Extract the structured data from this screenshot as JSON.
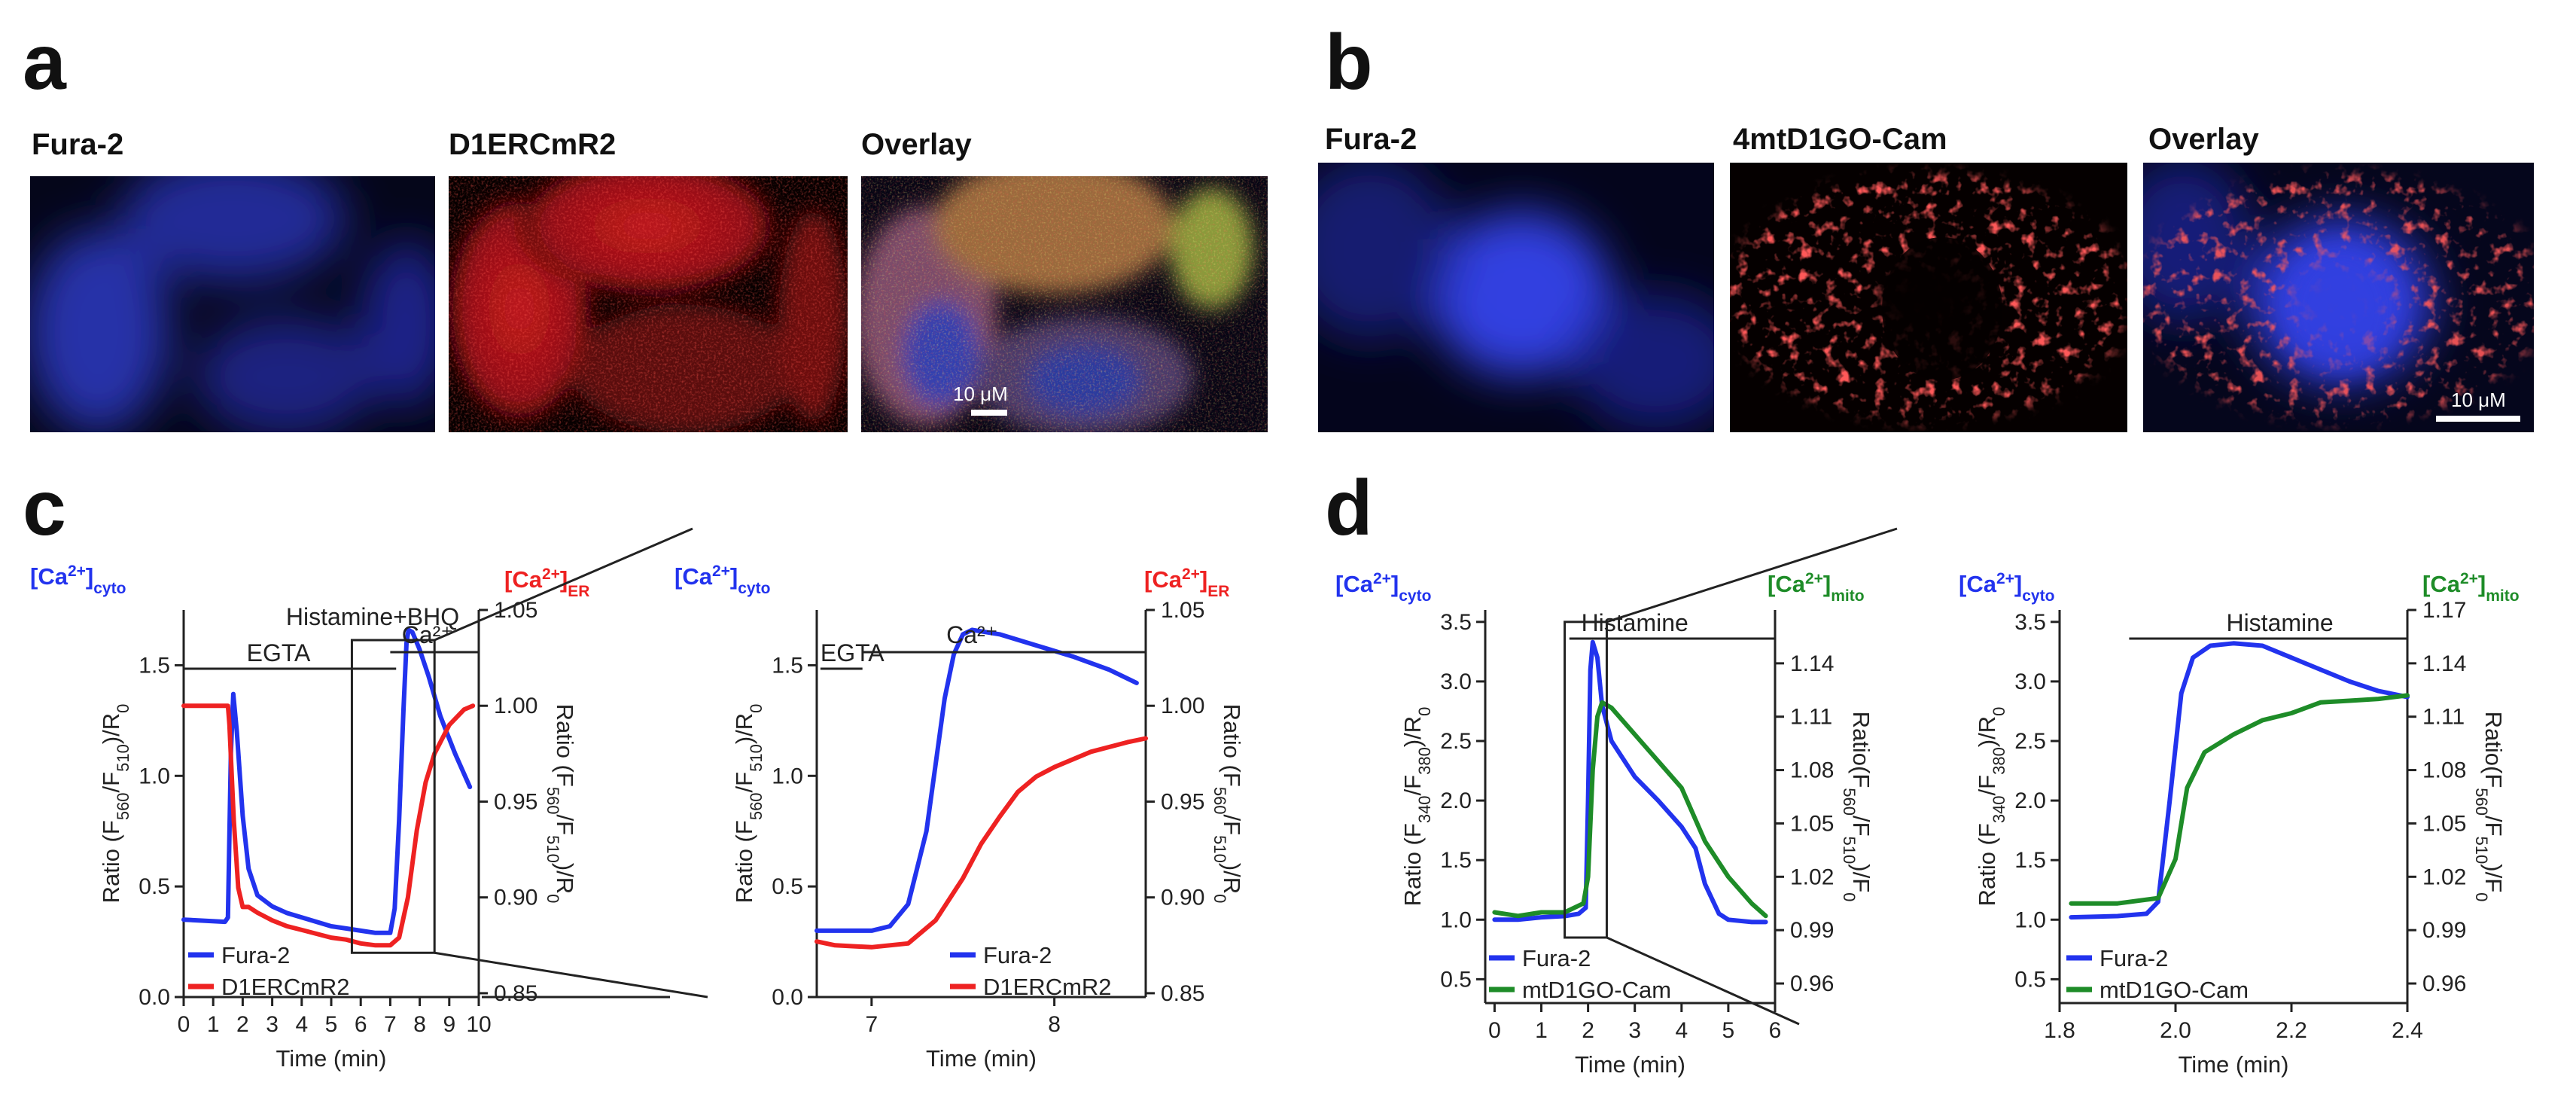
{
  "panels": {
    "a": {
      "letter": "a",
      "images": [
        {
          "title": "Fura-2",
          "description": "blue-fluorescence"
        },
        {
          "title": "D1ERCmR2",
          "description": "red-fluorescence"
        },
        {
          "title": "Overlay",
          "description": "overlay",
          "scale_bar": "10 μM"
        }
      ]
    },
    "b": {
      "letter": "b",
      "images": [
        {
          "title": "Fura-2"
        },
        {
          "title": "4mtD1GO-Cam"
        },
        {
          "title": "Overlay",
          "scale_bar": "10 μM"
        }
      ]
    },
    "c": {
      "letter": "c"
    },
    "d": {
      "letter": "d"
    }
  },
  "colors": {
    "blue": "#2233ee",
    "red": "#ee2222",
    "green": "#1e8c28",
    "axis": "#222222"
  },
  "chart_data": [
    {
      "id": "c-left",
      "type": "line",
      "left_header": {
        "main": "[Ca",
        "sup": "2+",
        "close": "]",
        "sub": "cyto",
        "color": "#2233ee"
      },
      "right_header": {
        "main": "[Ca",
        "sup": "2+",
        "close": "]",
        "sub": "ER",
        "color": "#ee2222"
      },
      "xlabel": "Time (min)",
      "ylabel": "Ratio (F560/F510)/R0",
      "y2label": "Ratio (F560/F510)/R0",
      "xlim": [
        0,
        10
      ],
      "ylim": [
        0,
        1.75
      ],
      "y2lim": [
        0.848,
        1.05
      ],
      "xticks": [
        0,
        1,
        2,
        3,
        4,
        5,
        6,
        7,
        8,
        9,
        10
      ],
      "yticks": [
        "0.0",
        "0.5",
        "1.0",
        "1.5"
      ],
      "y2ticks": [
        "0.85",
        "0.90",
        "0.95",
        "1.00",
        "1.05"
      ],
      "annotations": [
        {
          "text": "Histamine+BHQ"
        },
        {
          "text": "EGTA"
        },
        {
          "text": "Ca²⁺"
        }
      ],
      "inset_box": {
        "x": [
          5.7,
          8.5
        ],
        "y": [
          0.2,
          1.75
        ]
      },
      "series": [
        {
          "name": "Fura-2",
          "axis": "left",
          "color": "#2233ee",
          "points": [
            [
              0,
              0.35
            ],
            [
              1.4,
              0.34
            ],
            [
              1.5,
              0.36
            ],
            [
              1.6,
              1.1
            ],
            [
              1.68,
              1.37
            ],
            [
              1.8,
              1.2
            ],
            [
              2.0,
              0.82
            ],
            [
              2.2,
              0.58
            ],
            [
              2.5,
              0.46
            ],
            [
              3.0,
              0.41
            ],
            [
              3.5,
              0.38
            ],
            [
              4.0,
              0.36
            ],
            [
              4.5,
              0.34
            ],
            [
              5.0,
              0.32
            ],
            [
              5.5,
              0.31
            ],
            [
              6.0,
              0.3
            ],
            [
              6.5,
              0.29
            ],
            [
              7.0,
              0.29
            ],
            [
              7.15,
              0.4
            ],
            [
              7.3,
              0.8
            ],
            [
              7.45,
              1.3
            ],
            [
              7.55,
              1.6
            ],
            [
              7.62,
              1.66
            ],
            [
              7.75,
              1.65
            ],
            [
              8.0,
              1.57
            ],
            [
              8.3,
              1.45
            ],
            [
              8.7,
              1.27
            ],
            [
              9.2,
              1.1
            ],
            [
              9.7,
              0.95
            ]
          ]
        },
        {
          "name": "D1ERCmR2",
          "axis": "right",
          "color": "#ee2222",
          "points": [
            [
              0,
              1.0
            ],
            [
              1.5,
              1.0
            ],
            [
              1.55,
              0.99
            ],
            [
              1.7,
              0.94
            ],
            [
              1.85,
              0.905
            ],
            [
              2.0,
              0.895
            ],
            [
              2.2,
              0.895
            ],
            [
              2.5,
              0.892
            ],
            [
              3.0,
              0.888
            ],
            [
              3.5,
              0.885
            ],
            [
              4.0,
              0.883
            ],
            [
              4.5,
              0.881
            ],
            [
              5.0,
              0.879
            ],
            [
              5.5,
              0.878
            ],
            [
              6.0,
              0.876
            ],
            [
              6.5,
              0.875
            ],
            [
              7.0,
              0.875
            ],
            [
              7.3,
              0.879
            ],
            [
              7.6,
              0.9
            ],
            [
              7.9,
              0.935
            ],
            [
              8.2,
              0.96
            ],
            [
              8.5,
              0.975
            ],
            [
              9.0,
              0.99
            ],
            [
              9.5,
              0.998
            ],
            [
              9.8,
              1.0
            ]
          ]
        }
      ],
      "legend": [
        "Fura-2",
        "D1ERCmR2"
      ]
    },
    {
      "id": "c-right",
      "type": "line",
      "left_header": {
        "main": "[Ca",
        "sup": "2+",
        "close": "]",
        "sub": "cyto",
        "color": "#2233ee"
      },
      "right_header": {
        "main": "[Ca",
        "sup": "2+",
        "close": "]",
        "sub": "ER",
        "color": "#ee2222"
      },
      "xlabel": "Time (min)",
      "ylabel": "Ratio (F560/F510)/R0",
      "y2label": "Ratio (F560/F510)/R0",
      "xlim": [
        6.7,
        8.5
      ],
      "ylim": [
        0,
        1.75
      ],
      "y2lim": [
        0.848,
        1.05
      ],
      "xticks": [
        7,
        8
      ],
      "yticks": [
        "0.0",
        "0.5",
        "1.0",
        "1.5"
      ],
      "y2ticks": [
        "0.85",
        "0.90",
        "0.95",
        "1.00",
        "1.05"
      ],
      "annotations": [
        {
          "text": "EGTA"
        },
        {
          "text": "Ca²⁺"
        }
      ],
      "series": [
        {
          "name": "Fura-2",
          "axis": "left",
          "color": "#2233ee",
          "points": [
            [
              6.7,
              0.3
            ],
            [
              7.0,
              0.3
            ],
            [
              7.1,
              0.32
            ],
            [
              7.2,
              0.42
            ],
            [
              7.3,
              0.75
            ],
            [
              7.35,
              1.05
            ],
            [
              7.4,
              1.35
            ],
            [
              7.45,
              1.55
            ],
            [
              7.5,
              1.64
            ],
            [
              7.55,
              1.66
            ],
            [
              7.7,
              1.64
            ],
            [
              7.9,
              1.59
            ],
            [
              8.1,
              1.54
            ],
            [
              8.3,
              1.48
            ],
            [
              8.45,
              1.42
            ]
          ]
        },
        {
          "name": "D1ERCmR2",
          "axis": "right",
          "color": "#ee2222",
          "points": [
            [
              6.7,
              0.877
            ],
            [
              6.8,
              0.875
            ],
            [
              7.0,
              0.874
            ],
            [
              7.2,
              0.876
            ],
            [
              7.35,
              0.888
            ],
            [
              7.5,
              0.91
            ],
            [
              7.6,
              0.928
            ],
            [
              7.7,
              0.942
            ],
            [
              7.8,
              0.955
            ],
            [
              7.9,
              0.963
            ],
            [
              8.0,
              0.968
            ],
            [
              8.2,
              0.976
            ],
            [
              8.4,
              0.981
            ],
            [
              8.5,
              0.983
            ]
          ]
        }
      ],
      "legend": [
        "Fura-2",
        "D1ERCmR2"
      ]
    },
    {
      "id": "d-left",
      "type": "line",
      "left_header": {
        "main": "[Ca",
        "sup": "2+",
        "close": "]",
        "sub": "cyto",
        "color": "#2233ee"
      },
      "right_header": {
        "main": "[Ca",
        "sup": "2+",
        "close": "]",
        "sub": "mito",
        "color": "#1e8c28"
      },
      "xlabel": "Time (min)",
      "ylabel": "Ratio (F340/F380)/R0",
      "y2label": "Ratio(F560/F510)/F0",
      "xlim": [
        -0.2,
        6
      ],
      "ylim": [
        0.3,
        3.6
      ],
      "y2lim": [
        0.949,
        1.17
      ],
      "xticks": [
        0,
        1,
        2,
        3,
        4,
        5,
        6
      ],
      "yticks": [
        "0.5",
        "1.0",
        "1.5",
        "2.0",
        "2.5",
        "3.0",
        "3.5"
      ],
      "y2ticks": [
        "0.96",
        "0.99",
        "1.02",
        "1.05",
        "1.08",
        "1.11",
        "1.14"
      ],
      "annotations": [
        {
          "text": "Histamine"
        }
      ],
      "inset_box": {
        "x": [
          1.5,
          2.4
        ],
        "y": [
          0.85,
          3.5
        ]
      },
      "series": [
        {
          "name": "Fura-2",
          "axis": "left",
          "color": "#2233ee",
          "points": [
            [
              0,
              1.0
            ],
            [
              0.5,
              1.0
            ],
            [
              1.0,
              1.02
            ],
            [
              1.5,
              1.03
            ],
            [
              1.8,
              1.05
            ],
            [
              1.95,
              1.1
            ],
            [
              2.0,
              2.0
            ],
            [
              2.05,
              3.1
            ],
            [
              2.1,
              3.33
            ],
            [
              2.2,
              3.2
            ],
            [
              2.3,
              2.8
            ],
            [
              2.5,
              2.5
            ],
            [
              3.0,
              2.2
            ],
            [
              3.5,
              2.0
            ],
            [
              4.0,
              1.78
            ],
            [
              4.3,
              1.6
            ],
            [
              4.5,
              1.3
            ],
            [
              4.8,
              1.05
            ],
            [
              5.0,
              1.0
            ],
            [
              5.5,
              0.98
            ],
            [
              5.8,
              0.98
            ]
          ]
        },
        {
          "name": "mtD1GO-Cam",
          "axis": "right",
          "color": "#1e8c28",
          "points": [
            [
              0,
              1.0
            ],
            [
              0.5,
              0.998
            ],
            [
              1.0,
              1.0
            ],
            [
              1.5,
              1.0
            ],
            [
              1.9,
              1.005
            ],
            [
              2.0,
              1.02
            ],
            [
              2.1,
              1.08
            ],
            [
              2.2,
              1.11
            ],
            [
              2.3,
              1.118
            ],
            [
              2.5,
              1.115
            ],
            [
              3.0,
              1.1
            ],
            [
              3.5,
              1.085
            ],
            [
              4.0,
              1.07
            ],
            [
              4.5,
              1.04
            ],
            [
              5.0,
              1.02
            ],
            [
              5.5,
              1.005
            ],
            [
              5.8,
              0.998
            ]
          ]
        }
      ],
      "legend": [
        "Fura-2",
        "mtD1GO-Cam"
      ]
    },
    {
      "id": "d-right",
      "type": "line",
      "left_header": {
        "main": "[Ca",
        "sup": "2+",
        "close": "]",
        "sub": "cyto",
        "color": "#2233ee"
      },
      "right_header": {
        "main": "[Ca",
        "sup": "2+",
        "close": "]",
        "sub": "mito",
        "color": "#1e8c28"
      },
      "xlabel": "Time (min)",
      "ylabel": "Ratio (F340/F380)/R0",
      "y2label": "Ratio(F560/F510)/F0",
      "xlim": [
        1.8,
        2.4
      ],
      "ylim": [
        0.3,
        3.6
      ],
      "y2lim": [
        0.949,
        1.17
      ],
      "xticks": [
        1.8,
        2.0,
        2.2,
        2.4
      ],
      "yticks": [
        "0.5",
        "1.0",
        "1.5",
        "2.0",
        "2.5",
        "3.0",
        "3.5"
      ],
      "y2ticks": [
        "0.96",
        "0.99",
        "1.02",
        "1.05",
        "1.08",
        "1.11",
        "1.14",
        "1.17"
      ],
      "annotations": [
        {
          "text": "Histamine"
        }
      ],
      "series": [
        {
          "name": "Fura-2",
          "axis": "left",
          "color": "#2233ee",
          "points": [
            [
              1.82,
              1.02
            ],
            [
              1.9,
              1.03
            ],
            [
              1.95,
              1.05
            ],
            [
              1.97,
              1.15
            ],
            [
              1.99,
              2.0
            ],
            [
              2.01,
              2.9
            ],
            [
              2.03,
              3.2
            ],
            [
              2.06,
              3.3
            ],
            [
              2.1,
              3.32
            ],
            [
              2.15,
              3.3
            ],
            [
              2.2,
              3.2
            ],
            [
              2.25,
              3.1
            ],
            [
              2.3,
              3.0
            ],
            [
              2.35,
              2.92
            ],
            [
              2.4,
              2.87
            ]
          ]
        },
        {
          "name": "mtD1GO-Cam",
          "axis": "right",
          "color": "#1e8c28",
          "points": [
            [
              1.82,
              1.005
            ],
            [
              1.9,
              1.005
            ],
            [
              1.97,
              1.008
            ],
            [
              2.0,
              1.03
            ],
            [
              2.02,
              1.07
            ],
            [
              2.05,
              1.09
            ],
            [
              2.1,
              1.1
            ],
            [
              2.15,
              1.108
            ],
            [
              2.2,
              1.112
            ],
            [
              2.25,
              1.118
            ],
            [
              2.3,
              1.119
            ],
            [
              2.35,
              1.12
            ],
            [
              2.4,
              1.122
            ]
          ]
        }
      ],
      "legend": [
        "Fura-2",
        "mtD1GO-Cam"
      ]
    }
  ]
}
